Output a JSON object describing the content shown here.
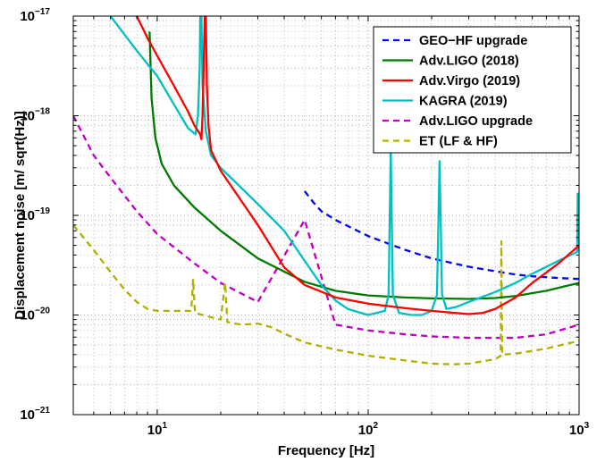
{
  "chart_data": {
    "type": "line",
    "title": "",
    "xlabel": "Frequency [Hz]",
    "ylabel": "Displacement noise [m/ sqrt(Hz)]",
    "xscale": "log",
    "yscale": "log",
    "xlim": [
      4,
      1000
    ],
    "ylim": [
      1e-21,
      1e-17
    ],
    "grid": true,
    "legend_position": "top-right",
    "x_ticks": [
      {
        "value": 10,
        "base": "10",
        "exp": "1"
      },
      {
        "value": 100,
        "base": "10",
        "exp": "2"
      },
      {
        "value": 1000,
        "base": "10",
        "exp": "3"
      }
    ],
    "y_ticks": [
      {
        "value": 1e-21,
        "base": "10",
        "exp": "−21"
      },
      {
        "value": 1e-20,
        "base": "10",
        "exp": "−20"
      },
      {
        "value": 1e-19,
        "base": "10",
        "exp": "−19"
      },
      {
        "value": 1e-18,
        "base": "10",
        "exp": "−18"
      },
      {
        "value": 1e-17,
        "base": "10",
        "exp": "−17"
      }
    ],
    "series": [
      {
        "name": "GEO−HF upgrade",
        "color": "#0000ff",
        "dash": true,
        "points": [
          [
            50,
            1.75e-19
          ],
          [
            55,
            1.35e-19
          ],
          [
            60,
            1.1e-19
          ],
          [
            70,
            9e-20
          ],
          [
            100,
            6.2e-20
          ],
          [
            150,
            4.5e-20
          ],
          [
            200,
            3.7e-20
          ],
          [
            300,
            3.05e-20
          ],
          [
            400,
            2.75e-20
          ],
          [
            500,
            2.55e-20
          ],
          [
            600,
            2.45e-20
          ],
          [
            800,
            2.35e-20
          ],
          [
            1000,
            2.3e-20
          ]
        ]
      },
      {
        "name": "Adv.LIGO (2018)",
        "color": "#007a00",
        "dash": false,
        "points": [
          [
            9.2,
            7e-18
          ],
          [
            9.4,
            1.5e-18
          ],
          [
            9.8,
            6e-19
          ],
          [
            10.5,
            3.3e-19
          ],
          [
            12,
            2e-19
          ],
          [
            15,
            1.2e-19
          ],
          [
            20,
            7e-20
          ],
          [
            30,
            3.7e-20
          ],
          [
            50,
            2.15e-20
          ],
          [
            70,
            1.75e-20
          ],
          [
            100,
            1.57e-20
          ],
          [
            150,
            1.5e-20
          ],
          [
            200,
            1.47e-20
          ],
          [
            300,
            1.45e-20
          ],
          [
            400,
            1.48e-20
          ],
          [
            500,
            1.55e-20
          ],
          [
            700,
            1.75e-20
          ],
          [
            1000,
            2.1e-20
          ]
        ]
      },
      {
        "name": "Adv.Virgo (2019)",
        "color": "#ff0000",
        "dash": false,
        "points": [
          [
            8,
            1e-17
          ],
          [
            9,
            6e-18
          ],
          [
            10,
            4e-18
          ],
          [
            12,
            2e-18
          ],
          [
            14,
            1.1e-18
          ],
          [
            15,
            8e-19
          ],
          [
            16,
            6.5e-19
          ],
          [
            16.2,
            5.8e-19
          ],
          [
            16.4,
            1e-18
          ],
          [
            16.6,
            3e-18
          ],
          [
            16.8,
            1e-17
          ],
          [
            17,
            1e-17
          ],
          [
            17.2,
            2e-18
          ],
          [
            17.5,
            8e-19
          ],
          [
            18,
            4.5e-19
          ],
          [
            20,
            2.8e-19
          ],
          [
            30,
            8e-20
          ],
          [
            40,
            3e-20
          ],
          [
            50,
            2e-20
          ],
          [
            70,
            1.5e-20
          ],
          [
            100,
            1.3e-20
          ],
          [
            150,
            1.17e-20
          ],
          [
            200,
            1.1e-20
          ],
          [
            300,
            1.02e-20
          ],
          [
            350,
            1.05e-20
          ],
          [
            400,
            1.15e-20
          ],
          [
            500,
            1.5e-20
          ],
          [
            600,
            2.1e-20
          ],
          [
            800,
            3.3e-20
          ],
          [
            1000,
            5e-20
          ]
        ]
      },
      {
        "name": "KAGRA (2019)",
        "color": "#00c0c0",
        "dash": false,
        "points": [
          [
            6,
            1e-17
          ],
          [
            8,
            4.5e-18
          ],
          [
            10,
            2.5e-18
          ],
          [
            12,
            1.3e-18
          ],
          [
            14,
            7.5e-19
          ],
          [
            15.2,
            6.5e-19
          ],
          [
            15.6,
            1e-18
          ],
          [
            15.9,
            3e-18
          ],
          [
            16,
            1e-17
          ],
          [
            16.2,
            1e-17
          ],
          [
            16.4,
            2e-18
          ],
          [
            17,
            7e-19
          ],
          [
            18,
            4e-19
          ],
          [
            20,
            3e-19
          ],
          [
            30,
            1.3e-19
          ],
          [
            40,
            7e-20
          ],
          [
            50,
            3.5e-20
          ],
          [
            60,
            2e-20
          ],
          [
            70,
            1.4e-20
          ],
          [
            80,
            1.15e-20
          ],
          [
            100,
            1e-20
          ],
          [
            120,
            1.1e-20
          ],
          [
            125,
            1.6e-20
          ],
          [
            128,
            4.5e-19
          ],
          [
            131,
            1.6e-20
          ],
          [
            140,
            1.05e-20
          ],
          [
            160,
            1e-20
          ],
          [
            180,
            1e-20
          ],
          [
            200,
            1.1e-20
          ],
          [
            212,
            1.6e-20
          ],
          [
            218,
            3.5e-19
          ],
          [
            224,
            1.6e-20
          ],
          [
            235,
            1.15e-20
          ],
          [
            260,
            1.2e-20
          ],
          [
            300,
            1.35e-20
          ],
          [
            400,
            1.7e-20
          ],
          [
            500,
            2.1e-20
          ],
          [
            600,
            2.6e-20
          ],
          [
            800,
            3.5e-20
          ],
          [
            980,
            4.3e-20
          ],
          [
            985,
            1.65e-19
          ],
          [
            990,
            4.5e-20
          ],
          [
            1000,
            4.5e-20
          ]
        ]
      },
      {
        "name": "Adv.LIGO upgrade",
        "color": "#c000c0",
        "dash": true,
        "points": [
          [
            4,
            1e-18
          ],
          [
            5,
            4e-19
          ],
          [
            6,
            2.4e-19
          ],
          [
            8,
            1.1e-19
          ],
          [
            10,
            6.5e-20
          ],
          [
            15,
            3.3e-20
          ],
          [
            20,
            2.1e-20
          ],
          [
            30,
            1.35e-20
          ],
          [
            50,
            9e-20
          ],
          [
            70,
            8e-21
          ],
          [
            100,
            7e-21
          ],
          [
            150,
            6.4e-21
          ],
          [
            200,
            6.1e-21
          ],
          [
            300,
            5.9e-21
          ],
          [
            500,
            5.9e-21
          ],
          [
            700,
            6.4e-21
          ],
          [
            1000,
            8e-21
          ]
        ]
      },
      {
        "name": "ET (LF & HF)",
        "color": "#b0b000",
        "dash": true,
        "points": [
          [
            4,
            8e-20
          ],
          [
            5,
            4.5e-20
          ],
          [
            6,
            2.7e-20
          ],
          [
            7,
            1.8e-20
          ],
          [
            8,
            1.35e-20
          ],
          [
            9,
            1.15e-20
          ],
          [
            10,
            1.1e-20
          ],
          [
            12,
            1.1e-20
          ],
          [
            14.5,
            1.1e-20
          ],
          [
            14.8,
            2.3e-20
          ],
          [
            15.1,
            1.05e-20
          ],
          [
            18,
            9.5e-21
          ],
          [
            20,
            9e-21
          ],
          [
            21,
            2.1e-20
          ],
          [
            21.5,
            8.5e-21
          ],
          [
            25,
            8e-21
          ],
          [
            30,
            8.2e-21
          ],
          [
            35,
            7.5e-21
          ],
          [
            40,
            6.5e-21
          ],
          [
            50,
            5.3e-21
          ],
          [
            70,
            4.5e-21
          ],
          [
            100,
            3.9e-21
          ],
          [
            150,
            3.5e-21
          ],
          [
            200,
            3.25e-21
          ],
          [
            250,
            3.2e-21
          ],
          [
            300,
            3.25e-21
          ],
          [
            400,
            3.6e-21
          ],
          [
            425,
            3.9e-21
          ],
          [
            428,
            5.5e-20
          ],
          [
            432,
            4e-21
          ],
          [
            500,
            4.1e-21
          ],
          [
            700,
            4.6e-21
          ],
          [
            1000,
            5.5e-21
          ]
        ]
      }
    ]
  }
}
